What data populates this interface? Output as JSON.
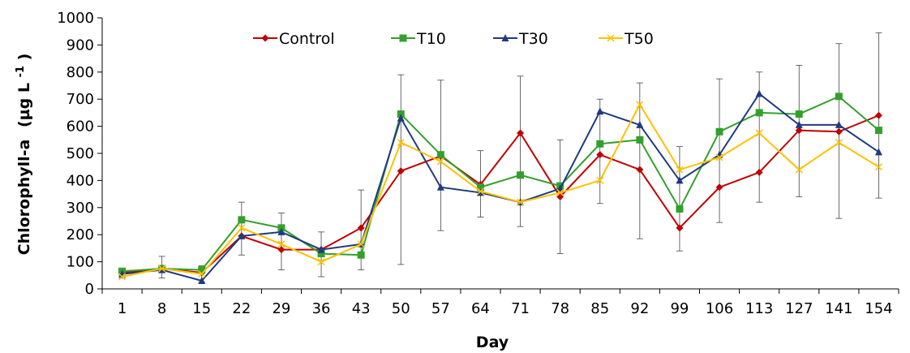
{
  "chart_data": {
    "type": "line",
    "xlabel": "Day",
    "ylabel": "Chlorophyll-a",
    "ylabel_unit": "(µg L",
    "ylabel_sup": "-1",
    "ylabel_close": ")",
    "ylim": [
      0,
      1000
    ],
    "yticks": [
      0,
      100,
      200,
      300,
      400,
      500,
      600,
      700,
      800,
      900,
      1000
    ],
    "categories": [
      "1",
      "8",
      "15",
      "22",
      "29",
      "36",
      "43",
      "50",
      "57",
      "64",
      "71",
      "78",
      "85",
      "92",
      "99",
      "106",
      "113",
      "127",
      "141",
      "154"
    ],
    "legend_position": "top-left",
    "grid": false,
    "series": [
      {
        "name": "Control",
        "color": "#c00000",
        "marker": "diamond",
        "values": [
          60,
          75,
          60,
          195,
          145,
          145,
          225,
          435,
          490,
          385,
          575,
          340,
          495,
          440,
          225,
          375,
          430,
          585,
          580,
          640
        ],
        "err_low": [
          0,
          0,
          0,
          0,
          0,
          0,
          0,
          0,
          0,
          0,
          0,
          0,
          0,
          0,
          0,
          0,
          0,
          0,
          0,
          0
        ],
        "err_high": [
          0,
          0,
          0,
          0,
          0,
          0,
          0,
          0,
          0,
          0,
          0,
          0,
          0,
          0,
          0,
          0,
          0,
          0,
          0,
          0
        ]
      },
      {
        "name": "T10",
        "color": "#33a02c",
        "marker": "square",
        "values": [
          65,
          75,
          70,
          255,
          225,
          130,
          125,
          645,
          495,
          375,
          420,
          380,
          535,
          550,
          295,
          580,
          650,
          645,
          710,
          585
        ],
        "err_low": [
          0,
          0,
          0,
          0,
          0,
          0,
          0,
          0,
          0,
          0,
          0,
          0,
          0,
          0,
          0,
          0,
          0,
          0,
          0,
          0
        ],
        "err_high": [
          0,
          0,
          0,
          0,
          0,
          0,
          0,
          0,
          0,
          0,
          0,
          0,
          0,
          0,
          0,
          0,
          0,
          0,
          0,
          0
        ]
      },
      {
        "name": "T30",
        "color": "#1f3a80",
        "marker": "triangle",
        "values": [
          55,
          70,
          30,
          195,
          210,
          145,
          165,
          630,
          375,
          355,
          320,
          370,
          655,
          605,
          400,
          495,
          720,
          605,
          605,
          505
        ],
        "err_low": [
          0,
          0,
          0,
          0,
          0,
          0,
          0,
          0,
          0,
          0,
          0,
          0,
          0,
          0,
          0,
          0,
          0,
          0,
          0,
          0
        ],
        "err_high": [
          0,
          0,
          0,
          0,
          0,
          0,
          0,
          0,
          0,
          0,
          0,
          0,
          0,
          0,
          0,
          0,
          0,
          0,
          0,
          0
        ]
      },
      {
        "name": "T50",
        "color": "#ffc000",
        "marker": "x",
        "values": [
          45,
          75,
          55,
          225,
          165,
          100,
          165,
          540,
          470,
          360,
          320,
          355,
          400,
          680,
          440,
          485,
          575,
          440,
          540,
          450
        ],
        "err_low": [
          0,
          0,
          0,
          0,
          0,
          0,
          0,
          0,
          0,
          0,
          0,
          0,
          0,
          0,
          0,
          0,
          0,
          0,
          0,
          0
        ],
        "err_high": [
          0,
          0,
          0,
          0,
          0,
          0,
          0,
          0,
          0,
          0,
          0,
          0,
          0,
          0,
          0,
          0,
          0,
          0,
          0,
          0
        ]
      }
    ],
    "error_bars": [
      {
        "cat": 0,
        "low": 40,
        "high": 75
      },
      {
        "cat": 1,
        "low": 40,
        "high": 120
      },
      {
        "cat": 2,
        "low": 25,
        "high": 85
      },
      {
        "cat": 3,
        "low": 125,
        "high": 320
      },
      {
        "cat": 4,
        "low": 70,
        "high": 280
      },
      {
        "cat": 5,
        "low": 45,
        "high": 210
      },
      {
        "cat": 6,
        "low": 70,
        "high": 365
      },
      {
        "cat": 7,
        "low": 90,
        "high": 790
      },
      {
        "cat": 8,
        "low": 215,
        "high": 770
      },
      {
        "cat": 9,
        "low": 265,
        "high": 510
      },
      {
        "cat": 10,
        "low": 230,
        "high": 785
      },
      {
        "cat": 11,
        "low": 130,
        "high": 550
      },
      {
        "cat": 12,
        "low": 315,
        "high": 700
      },
      {
        "cat": 13,
        "low": 185,
        "high": 760
      },
      {
        "cat": 14,
        "low": 140,
        "high": 525
      },
      {
        "cat": 15,
        "low": 245,
        "high": 775
      },
      {
        "cat": 16,
        "low": 320,
        "high": 800
      },
      {
        "cat": 17,
        "low": 340,
        "high": 825
      },
      {
        "cat": 18,
        "low": 260,
        "high": 905
      },
      {
        "cat": 19,
        "low": 335,
        "high": 945
      }
    ]
  }
}
